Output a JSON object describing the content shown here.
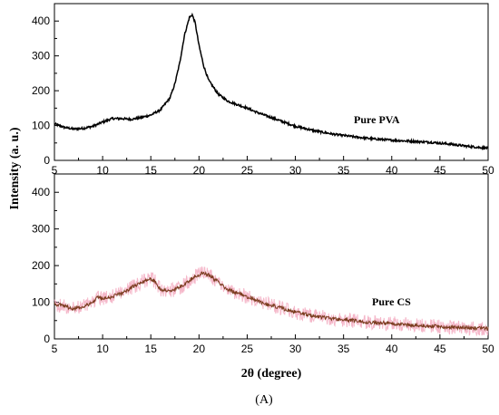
{
  "chart_data": [
    {
      "type": "line",
      "series_label": "Pure PVA",
      "xlim": [
        5,
        50
      ],
      "ylim": [
        0,
        450
      ],
      "xticks": [
        5,
        10,
        15,
        20,
        25,
        30,
        35,
        40,
        45,
        50
      ],
      "yticks": [
        0,
        100,
        200,
        300,
        400
      ],
      "x_tick_labels_shown": true,
      "series": [
        {
          "name": "Pure PVA",
          "color": "#000000",
          "x": [
            5,
            6,
            7,
            8,
            9,
            10,
            11,
            12,
            13,
            14,
            15,
            16,
            17,
            17.5,
            18,
            18.5,
            19,
            19.3,
            19.6,
            20,
            20.5,
            21,
            22,
            23,
            24,
            25,
            26,
            27,
            28,
            29,
            30,
            32,
            34,
            36,
            38,
            40,
            42,
            44,
            46,
            48,
            50
          ],
          "y": [
            105,
            95,
            90,
            92,
            98,
            110,
            120,
            120,
            118,
            123,
            130,
            145,
            180,
            220,
            280,
            360,
            410,
            418,
            395,
            330,
            270,
            230,
            190,
            170,
            160,
            150,
            138,
            128,
            118,
            108,
            98,
            85,
            75,
            68,
            62,
            58,
            55,
            52,
            47,
            40,
            35
          ]
        }
      ]
    },
    {
      "type": "line",
      "series_label": "Pure CS",
      "xlim": [
        5,
        50
      ],
      "ylim": [
        0,
        450
      ],
      "xticks": [
        5,
        10,
        15,
        20,
        25,
        30,
        35,
        40,
        45,
        50
      ],
      "yticks": [
        0,
        100,
        200,
        300,
        400
      ],
      "xlabel": "2θ (degree)",
      "series": [
        {
          "name": "Pure CS",
          "color": "#7a3b1e",
          "noise_color": "#f2a6bd",
          "x": [
            5,
            6,
            7,
            8,
            9,
            9.5,
            10,
            11,
            12,
            13,
            14,
            15,
            15.5,
            16,
            17,
            18,
            19,
            20,
            20.5,
            21,
            22,
            23,
            24,
            25,
            26,
            27,
            28,
            29,
            30,
            32,
            34,
            36,
            38,
            40,
            42,
            44,
            46,
            48,
            50
          ],
          "y": [
            95,
            90,
            82,
            88,
            100,
            115,
            110,
            115,
            125,
            140,
            155,
            165,
            155,
            135,
            130,
            140,
            160,
            175,
            180,
            175,
            155,
            135,
            125,
            115,
            105,
            95,
            88,
            80,
            73,
            62,
            55,
            50,
            45,
            42,
            38,
            35,
            32,
            30,
            28
          ]
        }
      ]
    }
  ],
  "ylabel": "Intensity (a. u.)",
  "caption": "(A)"
}
